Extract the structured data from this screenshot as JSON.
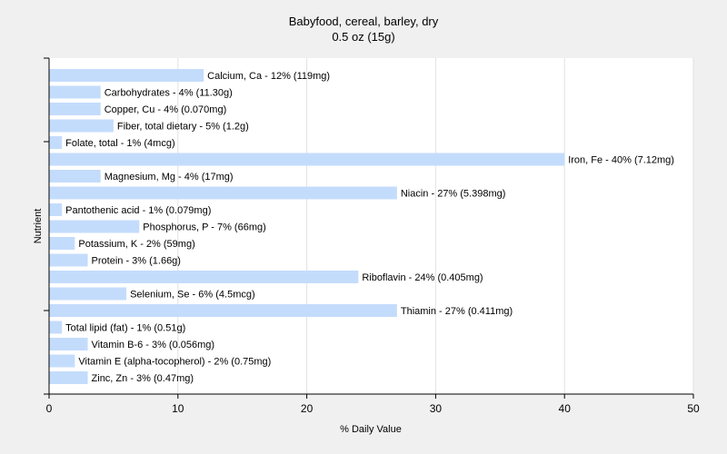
{
  "chart_data": {
    "type": "bar",
    "orientation": "horizontal",
    "title": "Babyfood, cereal, barley, dry",
    "subtitle": "0.5 oz (15g)",
    "xlabel": "% Daily Value",
    "ylabel": "Nutrient",
    "xlim": [
      0,
      50
    ],
    "xticks": [
      0,
      10,
      20,
      30,
      40,
      50
    ],
    "grid": true,
    "bar_color": "#c4dcfc",
    "categories": [
      "Calcium, Ca",
      "Carbohydrates",
      "Copper, Cu",
      "Fiber, total dietary",
      "Folate, total",
      "Iron, Fe",
      "Magnesium, Mg",
      "Niacin",
      "Pantothenic acid",
      "Phosphorus, P",
      "Potassium, K",
      "Protein",
      "Riboflavin",
      "Selenium, Se",
      "Thiamin",
      "Total lipid (fat)",
      "Vitamin B-6",
      "Vitamin E (alpha-tocopherol)",
      "Zinc, Zn"
    ],
    "values": [
      12,
      4,
      4,
      5,
      1,
      40,
      4,
      27,
      1,
      7,
      2,
      3,
      24,
      6,
      27,
      1,
      3,
      2,
      3
    ],
    "labels": [
      "Calcium, Ca - 12% (119mg)",
      "Carbohydrates - 4% (11.30g)",
      "Copper, Cu - 4% (0.070mg)",
      "Fiber, total dietary - 5% (1.2g)",
      "Folate, total - 1% (4mcg)",
      "Iron, Fe - 40% (7.12mg)",
      "Magnesium, Mg - 4% (17mg)",
      "Niacin - 27% (5.398mg)",
      "Pantothenic acid - 1% (0.079mg)",
      "Phosphorus, P - 7% (66mg)",
      "Potassium, K - 2% (59mg)",
      "Protein - 3% (1.66g)",
      "Riboflavin - 24% (0.405mg)",
      "Selenium, Se - 6% (4.5mcg)",
      "Thiamin - 27% (0.411mg)",
      "Total lipid (fat) - 1% (0.51g)",
      "Vitamin B-6 - 3% (0.056mg)",
      "Vitamin E (alpha-tocopherol) - 2% (0.75mg)",
      "Zinc, Zn - 3% (0.47mg)"
    ]
  }
}
